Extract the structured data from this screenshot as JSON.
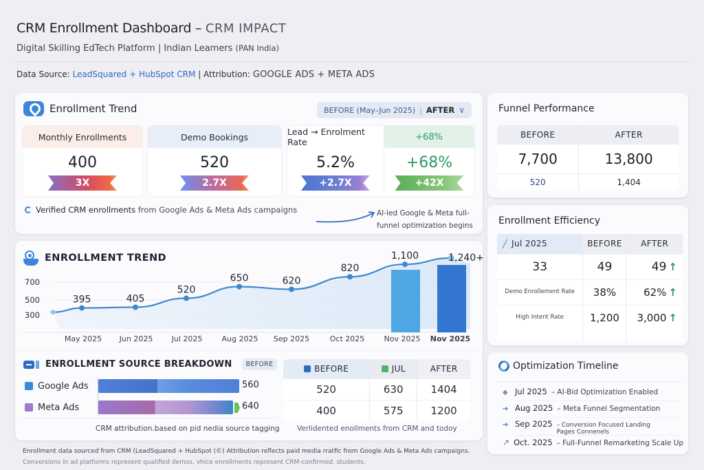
{
  "header": {
    "title": "CRM Enrollment Dashboard –",
    "title_accent": "CRM IMPACT",
    "subtitle_main": "Digital Skilling EdTech Platform | Indian Leamers",
    "subtitle_small": "(PAN India)",
    "source_label": "Data Source:",
    "source_value": "LeadSquared + HubSpot CRM",
    "attribution_label": "| Attribution:",
    "attribution_value": "GOOGLE ADS + META ADS"
  },
  "kpi_card": {
    "title": "Enrollment Trend",
    "icon": "location-pin-icon",
    "toggle": {
      "before": "BEFORE (May–Jun 2025)",
      "separator": "|",
      "after": "AFTER",
      "chevron": "∨"
    },
    "kpis": [
      {
        "label": "Monthly Enrollments",
        "value": "400",
        "badge": "3X"
      },
      {
        "label": "Demo Bookings",
        "value": "520",
        "badge": "2.7X"
      },
      {
        "label": "Lead → Enrolment Rate",
        "label_right": "+68%",
        "value": "5.2%",
        "badge": "+2.7X",
        "value_right": "+68%",
        "badge_right": "+42X"
      }
    ],
    "note_bold": "Verified CRM enrollments",
    "note_rest": " from Google Ads & Meta Ads campaigns",
    "ai_note": "AI-led Google & Meta full-funnel optimization begins"
  },
  "trend": {
    "title": "ENROLLMENT TREND",
    "icon": "signal-icon"
  },
  "chart_data": {
    "type": "line",
    "title": "ENROLLMENT TREND",
    "xlabel": "",
    "ylabel": "",
    "y_ticks": [
      300,
      500,
      700
    ],
    "ylim": [
      200,
      1300
    ],
    "grid": true,
    "categories": [
      "May 2025",
      "Jun 2025",
      "Jul 2025",
      "Aug 2025",
      "Sep 2025",
      "Oct 2025",
      "Nov 2025",
      "Nov 2025"
    ],
    "series": [
      {
        "name": "Enrollments (line)",
        "type": "line",
        "values": [
          395,
          405,
          520,
          650,
          620,
          820,
          1100,
          1240
        ],
        "labels": [
          "395",
          "405",
          "520",
          "650",
          "620",
          "820",
          "1,100",
          "1,240+"
        ]
      },
      {
        "name": "Enrollments (bars)",
        "type": "bar",
        "categories": [
          "Nov 2025",
          "Nov 2025"
        ],
        "values": [
          1100,
          1240
        ]
      }
    ]
  },
  "source": {
    "title": "ENROLLMENT SOURCE BREAKDOWN",
    "badge": "BEFORE",
    "rows": [
      {
        "name": "Google Ads",
        "value": "560",
        "color": "#3a8ad8"
      },
      {
        "name": "Meta Ads",
        "value": "640",
        "color": "#9b7ad0"
      }
    ],
    "note": "CRM attribution.based on pid nedia source tagging",
    "table": {
      "headers": [
        "BEFORE",
        "JUL",
        "AFTER"
      ],
      "rows": [
        [
          "520",
          "630",
          "1404"
        ],
        [
          "400",
          "575",
          "1200"
        ]
      ],
      "note": "Verlidented enollments from CRM and todoy"
    }
  },
  "footer": {
    "line1": "Enrollment data sourced from CRM (LeadSquared + HubSpot (©) Attribution reflects paid media rratfic from Google Ads & Meta Ads campaigns.",
    "line2": "Conversions in ad platforms represent qualified demos, vhice enrollments represent CRM-confirmed. students."
  },
  "funnel": {
    "title": "Funnel Performance",
    "headers": [
      "BEFORE",
      "AFTER"
    ],
    "main": [
      "7,700",
      "13,800"
    ],
    "sub": [
      "520",
      "1,404"
    ]
  },
  "efficiency": {
    "title": "Enrollment Efficiency",
    "headers": [
      "Jul 2025",
      "BEFORE",
      "AFTER"
    ],
    "rows": [
      {
        "label": "33",
        "before": "49",
        "after": "49"
      },
      {
        "label": "Demo Enrollement Rate",
        "before": "38%",
        "after": "62%"
      },
      {
        "label": "High Intent Rate",
        "before": "1,200",
        "after": "3,000"
      }
    ],
    "up_arrow": "↑",
    "colors": {
      "up": "#2f9a66"
    }
  },
  "timeline": {
    "title": "Optimization Timeline",
    "items": [
      {
        "date": "Jul 2025",
        "text": "– AI-Bid Optimization Enabled",
        "icon": "◆"
      },
      {
        "date": "Aug 2025",
        "text": "– Meta Funnel Segmentation",
        "icon": "➔"
      },
      {
        "date": "Sep 2025",
        "text": "– Conversion Focused Landing Pages Connenels",
        "icon": "➔"
      },
      {
        "date": "Oct. 2025",
        "text": "– Full-Funnel Remarketing Scale Up",
        "icon": "↗"
      }
    ]
  }
}
